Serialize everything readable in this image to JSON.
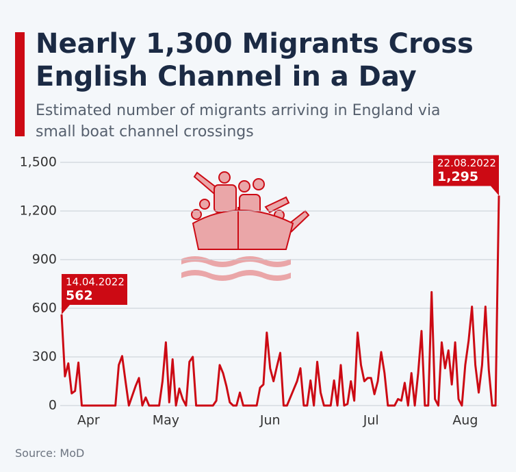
{
  "chart_data": {
    "type": "line",
    "title": "Nearly 1,300 Migrants Cross English Channel in a Day",
    "subtitle": "Estimated number of migrants arriving in England via small boat channel crossings",
    "source": "Source: MoD",
    "color": "#cc0a14",
    "grid": true,
    "ylim": [
      0,
      1500
    ],
    "yticks": [
      0,
      300,
      600,
      900,
      {
        "value": 1200,
        "label": "1,200"
      },
      {
        "value": 1500,
        "label": "1,500"
      }
    ],
    "categories": [
      null,
      null,
      null,
      null,
      null,
      null,
      null,
      null,
      "Apr",
      null,
      null,
      null,
      null,
      null,
      null,
      null,
      null,
      null,
      null,
      null,
      null,
      null,
      null,
      null,
      null,
      null,
      null,
      null,
      null,
      null,
      null,
      "May",
      null,
      null,
      null,
      null,
      null,
      null,
      null,
      null,
      null,
      null,
      null,
      null,
      null,
      null,
      null,
      null,
      null,
      null,
      null,
      null,
      null,
      null,
      null,
      null,
      null,
      null,
      null,
      null,
      null,
      null,
      "Jun",
      null,
      null,
      null,
      null,
      null,
      null,
      null,
      null,
      null,
      null,
      null,
      null,
      null,
      null,
      null,
      null,
      null,
      null,
      null,
      null,
      null,
      null,
      null,
      null,
      null,
      null,
      null,
      null,
      null,
      "Jul",
      null,
      null,
      null,
      null,
      null,
      null,
      null,
      null,
      null,
      null,
      null,
      null,
      null,
      null,
      null,
      null,
      null,
      null,
      null,
      null,
      null,
      null,
      null,
      null,
      null,
      null,
      null,
      "Aug",
      null,
      null,
      null,
      null,
      null,
      null,
      null,
      null,
      null,
      null
    ],
    "values": [
      562,
      180,
      260,
      75,
      90,
      265,
      0,
      0,
      0,
      0,
      0,
      0,
      0,
      0,
      0,
      0,
      0,
      250,
      305,
      150,
      0,
      60,
      120,
      170,
      0,
      50,
      0,
      0,
      0,
      0,
      150,
      390,
      20,
      285,
      0,
      105,
      40,
      0,
      270,
      300,
      0,
      0,
      0,
      0,
      0,
      0,
      30,
      250,
      200,
      120,
      20,
      0,
      0,
      80,
      0,
      0,
      0,
      0,
      0,
      110,
      130,
      450,
      230,
      150,
      240,
      325,
      0,
      0,
      50,
      100,
      150,
      230,
      0,
      0,
      155,
      0,
      270,
      80,
      0,
      0,
      0,
      155,
      0,
      250,
      0,
      10,
      150,
      30,
      450,
      250,
      150,
      170,
      170,
      70,
      150,
      330,
      200,
      0,
      0,
      0,
      40,
      30,
      140,
      0,
      200,
      0,
      200,
      460,
      0,
      0,
      700,
      40,
      0,
      390,
      230,
      340,
      130,
      390,
      40,
      0,
      250,
      400,
      610,
      250,
      80,
      250,
      610,
      220,
      0,
      0,
      1295
    ],
    "value_labels": [
      "562",
      null,
      null,
      null,
      null,
      null,
      null,
      null,
      null,
      null,
      null,
      null,
      null,
      null,
      null,
      null,
      null,
      null,
      null,
      null,
      null,
      null,
      null,
      null,
      null,
      null,
      null,
      null,
      null,
      null,
      null,
      null,
      null,
      null,
      null,
      null,
      null,
      null,
      null,
      null,
      null,
      null,
      null,
      null,
      null,
      null,
      null,
      null,
      null,
      null,
      null,
      null,
      null,
      null,
      null,
      null,
      null,
      null,
      null,
      null,
      null,
      null,
      null,
      null,
      null,
      null,
      null,
      null,
      null,
      null,
      null,
      null,
      null,
      null,
      null,
      null,
      null,
      null,
      null,
      null,
      null,
      null,
      null,
      null,
      null,
      null,
      null,
      null,
      null,
      null,
      null,
      null,
      null,
      null,
      null,
      null,
      null,
      null,
      null,
      null,
      null,
      null,
      null,
      null,
      null,
      null,
      null,
      null,
      null,
      null,
      null,
      null,
      null,
      null,
      null,
      null,
      null,
      null,
      null,
      null,
      null,
      null,
      null,
      null,
      null,
      null,
      null,
      null,
      null,
      null,
      "1,295"
    ],
    "annotations": [
      "14.04.2022",
      null,
      null,
      null,
      null,
      null,
      null,
      null,
      null,
      null,
      null,
      null,
      null,
      null,
      null,
      null,
      null,
      null,
      null,
      null,
      null,
      null,
      null,
      null,
      null,
      null,
      null,
      null,
      null,
      null,
      null,
      null,
      null,
      null,
      null,
      null,
      null,
      null,
      null,
      null,
      null,
      null,
      null,
      null,
      null,
      null,
      null,
      null,
      null,
      null,
      null,
      null,
      null,
      null,
      null,
      null,
      null,
      null,
      null,
      null,
      null,
      null,
      null,
      null,
      null,
      null,
      null,
      null,
      null,
      null,
      null,
      null,
      null,
      null,
      null,
      null,
      null,
      null,
      null,
      null,
      null,
      null,
      null,
      null,
      null,
      null,
      null,
      null,
      null,
      null,
      null,
      null,
      null,
      null,
      null,
      null,
      null,
      null,
      null,
      null,
      null,
      null,
      null,
      null,
      null,
      null,
      null,
      null,
      null,
      null,
      null,
      null,
      null,
      null,
      null,
      null,
      null,
      null,
      null,
      null,
      null,
      null,
      null,
      null,
      null,
      null,
      null,
      null,
      null,
      null,
      "22.08.2022"
    ]
  }
}
